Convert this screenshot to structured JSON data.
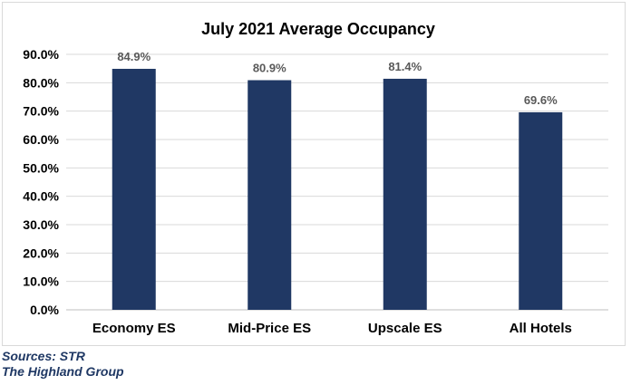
{
  "chart_data": {
    "type": "bar",
    "title": "July 2021 Average Occupancy",
    "categories": [
      "Economy ES",
      "Mid-Price ES",
      "Upscale ES",
      "All Hotels"
    ],
    "values": [
      84.9,
      80.9,
      81.4,
      69.6
    ],
    "value_labels": [
      "84.9%",
      "80.9%",
      "81.4%",
      "69.6%"
    ],
    "yticks": [
      "0.0%",
      "10.0%",
      "20.0%",
      "30.0%",
      "40.0%",
      "50.0%",
      "60.0%",
      "70.0%",
      "80.0%",
      "90.0%"
    ],
    "ylim": [
      0,
      90
    ],
    "grid": true,
    "bar_color": "#203864"
  },
  "sources": [
    "Sources: STR",
    "The Highland Group"
  ]
}
